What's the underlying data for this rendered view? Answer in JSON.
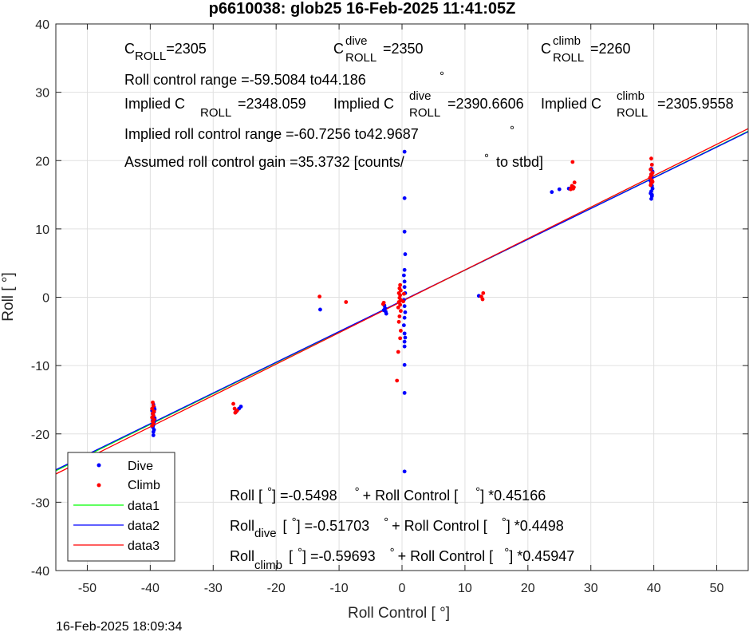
{
  "chart_data": {
    "type": "scatter",
    "title": "p6610038: glob25 16-Feb-2025 11:41:05Z",
    "xlabel": "Roll Control [   °]",
    "ylabel": "Roll [   °]",
    "xlim": [
      -55,
      55
    ],
    "ylim": [
      -40,
      40
    ],
    "xticks": [
      -50,
      -40,
      -30,
      -20,
      -10,
      0,
      10,
      20,
      30,
      40,
      50
    ],
    "yticks": [
      -40,
      -30,
      -20,
      -10,
      0,
      10,
      20,
      30,
      40
    ],
    "grid": true,
    "legend_position": "bottom-left",
    "timestamp": "16-Feb-2025 18:09:34",
    "series": [
      {
        "name": "Dive",
        "kind": "points",
        "color": "#0000ff",
        "points": [
          [
            -39.5,
            -15.7
          ],
          [
            -39.4,
            -16.1
          ],
          [
            -39.3,
            -16.4
          ],
          [
            -39.4,
            -16.8
          ],
          [
            -39.6,
            -17.1
          ],
          [
            -39.5,
            -17.4
          ],
          [
            -39.3,
            -17.7
          ],
          [
            -39.6,
            -18.0
          ],
          [
            -39.4,
            -18.3
          ],
          [
            -39.5,
            -18.7
          ],
          [
            -39.6,
            -19.0
          ],
          [
            -39.4,
            -19.4
          ],
          [
            -39.5,
            -19.7
          ],
          [
            -39.5,
            -20.2
          ],
          [
            -39.3,
            -17.9
          ],
          [
            -39.7,
            -16.6
          ],
          [
            -26.4,
            -16.8
          ],
          [
            -25.9,
            -16.3
          ],
          [
            -25.6,
            -16.0
          ],
          [
            -13.0,
            -1.8
          ],
          [
            -2.8,
            -1.2
          ],
          [
            -2.7,
            -1.6
          ],
          [
            -2.6,
            -2.1
          ],
          [
            -2.5,
            -2.4
          ],
          [
            -2.9,
            -1.9
          ],
          [
            0.4,
            21.3
          ],
          [
            0.4,
            14.5
          ],
          [
            0.4,
            9.6
          ],
          [
            0.5,
            6.3
          ],
          [
            0.4,
            4.0
          ],
          [
            0.3,
            3.2
          ],
          [
            0.4,
            2.3
          ],
          [
            0.4,
            1.5
          ],
          [
            0.5,
            0.6
          ],
          [
            0.3,
            -0.4
          ],
          [
            0.4,
            -1.3
          ],
          [
            0.5,
            -2.2
          ],
          [
            0.4,
            -3.0
          ],
          [
            0.3,
            -4.1
          ],
          [
            0.4,
            -5.3
          ],
          [
            0.5,
            -5.9
          ],
          [
            0.4,
            -6.5
          ],
          [
            0.4,
            -7.2
          ],
          [
            0.4,
            -9.9
          ],
          [
            0.4,
            -14.0
          ],
          [
            0.4,
            -25.5
          ],
          [
            12.2,
            0.2
          ],
          [
            23.8,
            15.4
          ],
          [
            25.0,
            15.8
          ],
          [
            26.5,
            15.9
          ],
          [
            27.2,
            16.1
          ],
          [
            39.6,
            14.4
          ],
          [
            39.7,
            14.8
          ],
          [
            39.5,
            15.2
          ],
          [
            39.6,
            15.5
          ],
          [
            39.8,
            15.9
          ],
          [
            39.7,
            16.3
          ],
          [
            39.6,
            16.7
          ],
          [
            39.5,
            17.2
          ],
          [
            39.7,
            17.6
          ],
          [
            39.6,
            18.0
          ],
          [
            39.8,
            18.4
          ],
          [
            39.6,
            18.8
          ],
          [
            39.5,
            17.0
          ],
          [
            39.7,
            15.0
          ]
        ]
      },
      {
        "name": "Climb",
        "kind": "points",
        "color": "#ff0000",
        "points": [
          [
            -39.6,
            -15.4
          ],
          [
            -39.5,
            -15.9
          ],
          [
            -39.7,
            -16.3
          ],
          [
            -39.4,
            -16.7
          ],
          [
            -39.6,
            -17.0
          ],
          [
            -39.5,
            -17.3
          ],
          [
            -39.7,
            -17.6
          ],
          [
            -39.4,
            -17.9
          ],
          [
            -39.6,
            -18.2
          ],
          [
            -39.5,
            -18.5
          ],
          [
            -39.7,
            -18.8
          ],
          [
            -26.8,
            -15.6
          ],
          [
            -26.6,
            -16.3
          ],
          [
            -26.2,
            -16.6
          ],
          [
            -26.5,
            -16.9
          ],
          [
            -13.1,
            0.1
          ],
          [
            -8.9,
            -0.7
          ],
          [
            -2.9,
            -0.8
          ],
          [
            -3.0,
            -1.0
          ],
          [
            -0.8,
            -12.2
          ],
          [
            -0.6,
            -8.0
          ],
          [
            -0.3,
            -6.0
          ],
          [
            -0.2,
            -4.9
          ],
          [
            -0.5,
            -3.6
          ],
          [
            -0.4,
            -2.8
          ],
          [
            -0.2,
            -2.0
          ],
          [
            -0.6,
            -1.5
          ],
          [
            -0.3,
            -1.1
          ],
          [
            -0.5,
            -0.7
          ],
          [
            -0.2,
            -0.4
          ],
          [
            -0.4,
            -0.1
          ],
          [
            -0.3,
            0.3
          ],
          [
            -0.5,
            0.6
          ],
          [
            -0.2,
            1.0
          ],
          [
            -0.4,
            1.3
          ],
          [
            -0.3,
            1.8
          ],
          [
            0.2,
            -0.6
          ],
          [
            0.3,
            0.5
          ],
          [
            12.6,
            0.1
          ],
          [
            12.8,
            -0.3
          ],
          [
            12.9,
            0.6
          ],
          [
            26.8,
            15.8
          ],
          [
            27.0,
            16.3
          ],
          [
            27.2,
            15.9
          ],
          [
            27.4,
            16.8
          ],
          [
            27.1,
            19.8
          ],
          [
            26.9,
            16.0
          ],
          [
            27.3,
            16.1
          ],
          [
            39.6,
            20.3
          ],
          [
            39.7,
            19.4
          ],
          [
            39.5,
            18.7
          ],
          [
            39.8,
            18.2
          ],
          [
            39.6,
            17.8
          ],
          [
            39.4,
            17.5
          ],
          [
            39.7,
            17.1
          ],
          [
            39.6,
            16.7
          ],
          [
            39.5,
            16.4
          ],
          [
            39.8,
            16.9
          ],
          [
            39.6,
            18.0
          ]
        ]
      },
      {
        "name": "data1",
        "kind": "line",
        "color": "#00ff00",
        "x": [
          -55,
          55
        ],
        "y": [
          -25.3906,
          24.2941
        ]
      },
      {
        "name": "data2",
        "kind": "line",
        "color": "#0000ff",
        "x": [
          -55,
          55
        ],
        "y": [
          -25.256,
          24.222
        ]
      },
      {
        "name": "data3",
        "kind": "line",
        "color": "#ff0000",
        "x": [
          -55,
          55
        ],
        "y": [
          -25.8678,
          24.674
        ]
      }
    ]
  },
  "annotations": {
    "c_roll": {
      "c": "C",
      "sub": "ROLL",
      "value": "=2305"
    },
    "c_roll_dive": {
      "c": "C",
      "sup": "dive",
      "sub": "ROLL",
      "value": "=2350"
    },
    "c_roll_climb": {
      "c": "C",
      "sup": "climb",
      "sub": "ROLL",
      "value": "=2260"
    },
    "roll_control_range": {
      "text": "Roll control range =-59.5084 to44.186",
      "deg": "°"
    },
    "implied_c_roll": {
      "text": "Implied C",
      "sub": "ROLL",
      "value": "=2348.059"
    },
    "implied_c_roll_dive": {
      "text": "Implied C",
      "sup": "dive",
      "sub": "ROLL",
      "value": "=2390.6606"
    },
    "implied_c_roll_climb": {
      "text": "Implied C",
      "sup": "climb",
      "sub": "ROLL",
      "value": "=2305.9558"
    },
    "implied_range": {
      "text": "Implied roll control range =-60.7256 to42.9687",
      "deg": "°"
    },
    "gain": {
      "text": "Assumed roll control gain =35.3732 [counts/",
      "deg": "°",
      "tail": "to stbd]"
    },
    "fit_all": {
      "a": "Roll [",
      "deg1": "°",
      "b": "] =-0.5498",
      "deg2": "°",
      "c": "+ Roll Control [",
      "deg3": "°",
      "d": "] *0.45166"
    },
    "fit_dive": {
      "a": "Roll",
      "sub": "dive",
      "b": "[",
      "deg1": "°",
      "c": "] =-0.51703",
      "deg2": "°",
      "d": "+ Roll Control [",
      "deg3": "°",
      "e": "] *0.4498"
    },
    "fit_climb": {
      "a": "Roll",
      "sub": "climb",
      "b": "[",
      "deg1": "°",
      "c": "] =-0.59693",
      "deg2": "°",
      "d": "+ Roll Control [",
      "deg3": "°",
      "e": "] *0.45947"
    }
  }
}
